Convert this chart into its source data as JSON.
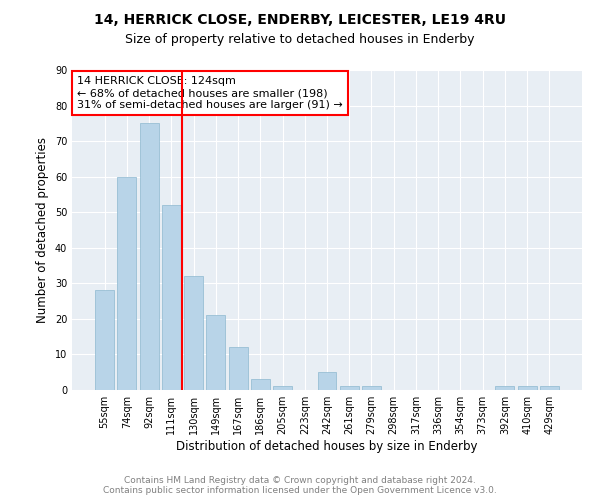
{
  "title1": "14, HERRICK CLOSE, ENDERBY, LEICESTER, LE19 4RU",
  "title2": "Size of property relative to detached houses in Enderby",
  "xlabel": "Distribution of detached houses by size in Enderby",
  "ylabel": "Number of detached properties",
  "categories": [
    "55sqm",
    "74sqm",
    "92sqm",
    "111sqm",
    "130sqm",
    "149sqm",
    "167sqm",
    "186sqm",
    "205sqm",
    "223sqm",
    "242sqm",
    "261sqm",
    "279sqm",
    "298sqm",
    "317sqm",
    "336sqm",
    "354sqm",
    "373sqm",
    "392sqm",
    "410sqm",
    "429sqm"
  ],
  "values": [
    28,
    60,
    75,
    52,
    32,
    21,
    12,
    3,
    1,
    0,
    5,
    1,
    1,
    0,
    0,
    0,
    0,
    0,
    1,
    1,
    1
  ],
  "bar_color": "#b8d4e8",
  "bar_edge_color": "#8db8d0",
  "vline_index": 3.5,
  "vline_color": "red",
  "annotation_text": "14 HERRICK CLOSE: 124sqm\n← 68% of detached houses are smaller (198)\n31% of semi-detached houses are larger (91) →",
  "annotation_box_color": "white",
  "annotation_box_edge_color": "red",
  "ylim": [
    0,
    90
  ],
  "yticks": [
    0,
    10,
    20,
    30,
    40,
    50,
    60,
    70,
    80,
    90
  ],
  "footer1": "Contains HM Land Registry data © Crown copyright and database right 2024.",
  "footer2": "Contains public sector information licensed under the Open Government Licence v3.0.",
  "bg_color": "#e8eef4"
}
